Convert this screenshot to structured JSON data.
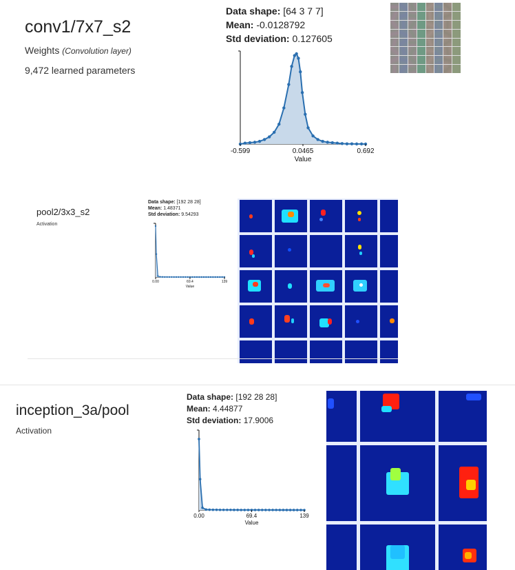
{
  "sections": [
    {
      "name": "conv1/7x7_s2",
      "type_label": "Weights",
      "type_detail": "(Convolution layer)",
      "params_text": "9,472 learned parameters",
      "stats": {
        "shape_label": "Data shape:",
        "shape_value": "[64 3 7 7]",
        "mean_label": "Mean:",
        "mean_value": "-0.0128792",
        "std_label": "Std deviation:",
        "std_value": "0.127605"
      }
    },
    {
      "name": "pool2/3x3_s2",
      "type_label": "Activation",
      "stats": {
        "shape_label": "Data shape:",
        "shape_value": "[192 28 28]",
        "mean_label": "Mean:",
        "mean_value": "1.48371",
        "std_label": "Std deviation:",
        "std_value": "9.54293"
      }
    },
    {
      "name": "inception_3a/pool",
      "type_label": "Activation",
      "stats": {
        "shape_label": "Data shape:",
        "shape_value": "[192 28 28]",
        "mean_label": "Mean:",
        "mean_value": "4.44877",
        "std_label": "Std deviation:",
        "std_value": "17.9006"
      }
    }
  ],
  "chart_data": [
    {
      "type": "area",
      "xlabel": "Value",
      "x_ticks": [
        "-0.599",
        "0.0465",
        "0.692"
      ],
      "xlim": [
        -0.599,
        0.692
      ],
      "x": [
        -0.599,
        -0.55,
        -0.5,
        -0.45,
        -0.4,
        -0.35,
        -0.3,
        -0.25,
        -0.2,
        -0.15,
        -0.1,
        -0.07,
        -0.04,
        -0.02,
        0.0,
        0.02,
        0.04,
        0.07,
        0.1,
        0.15,
        0.2,
        0.25,
        0.3,
        0.35,
        0.4,
        0.45,
        0.5,
        0.55,
        0.6,
        0.65,
        0.692
      ],
      "y": [
        0.0,
        0.01,
        0.015,
        0.02,
        0.03,
        0.05,
        0.08,
        0.13,
        0.22,
        0.4,
        0.66,
        0.86,
        0.98,
        1.0,
        0.95,
        0.8,
        0.57,
        0.33,
        0.18,
        0.09,
        0.05,
        0.03,
        0.02,
        0.015,
        0.01,
        0.005,
        0.002,
        0.002,
        0.001,
        0.001,
        0.0
      ]
    },
    {
      "type": "area",
      "xlabel": "Value",
      "x_ticks": [
        "0.00",
        "69.4",
        "139"
      ],
      "xlim": [
        0,
        139
      ],
      "x": [
        0,
        1.5,
        4.6,
        9.3,
        13.9,
        18.5,
        23.2,
        27.8,
        32.4,
        37.1,
        41.7,
        46.3,
        51.0,
        55.6,
        60.2,
        64.9,
        69.5,
        74.1,
        78.8,
        83.4,
        88.0,
        92.7,
        97.3,
        101.9,
        106.6,
        111.2,
        115.8,
        120.5,
        125.1,
        129.7,
        134.4,
        139
      ],
      "y": [
        1.0,
        0.45,
        0.02,
        0.004,
        0.002,
        0.0015,
        0.0012,
        0.001,
        0.001,
        0.0008,
        0.0008,
        0.0006,
        0.0006,
        0.0005,
        0.0005,
        0.0004,
        0.0004,
        0.0003,
        0.0003,
        0.0003,
        0.0002,
        0.0002,
        0.0002,
        0.0002,
        0.0002,
        0.0001,
        0.0001,
        0.0001,
        0.0001,
        0.0001,
        0.0001,
        0.0
      ]
    },
    {
      "type": "area",
      "xlabel": "Value",
      "x_ticks": [
        "0.00",
        "69.4",
        "139"
      ],
      "xlim": [
        0,
        139
      ],
      "x": [
        0,
        1.5,
        4.6,
        9.3,
        13.9,
        18.5,
        23.2,
        27.8,
        32.4,
        37.1,
        41.7,
        46.3,
        51.0,
        55.6,
        60.2,
        64.9,
        69.5,
        74.1,
        78.8,
        83.4,
        88.0,
        92.7,
        97.3,
        101.9,
        106.6,
        111.2,
        115.8,
        120.5,
        125.1,
        129.7,
        134.4,
        139
      ],
      "y": [
        0.92,
        0.4,
        0.03,
        0.006,
        0.004,
        0.003,
        0.003,
        0.002,
        0.002,
        0.002,
        0.002,
        0.0015,
        0.0015,
        0.001,
        0.001,
        0.001,
        0.001,
        0.001,
        0.001,
        0.0008,
        0.0008,
        0.0008,
        0.0006,
        0.0006,
        0.0005,
        0.0005,
        0.0004,
        0.0004,
        0.0003,
        0.0003,
        0.0002,
        0.0
      ]
    }
  ],
  "colors": {
    "line": "#2a6fb0",
    "fill": "#c8d9ea",
    "activation_bg": "#0a1f9a",
    "grid": "#e8eefc"
  },
  "icons": []
}
